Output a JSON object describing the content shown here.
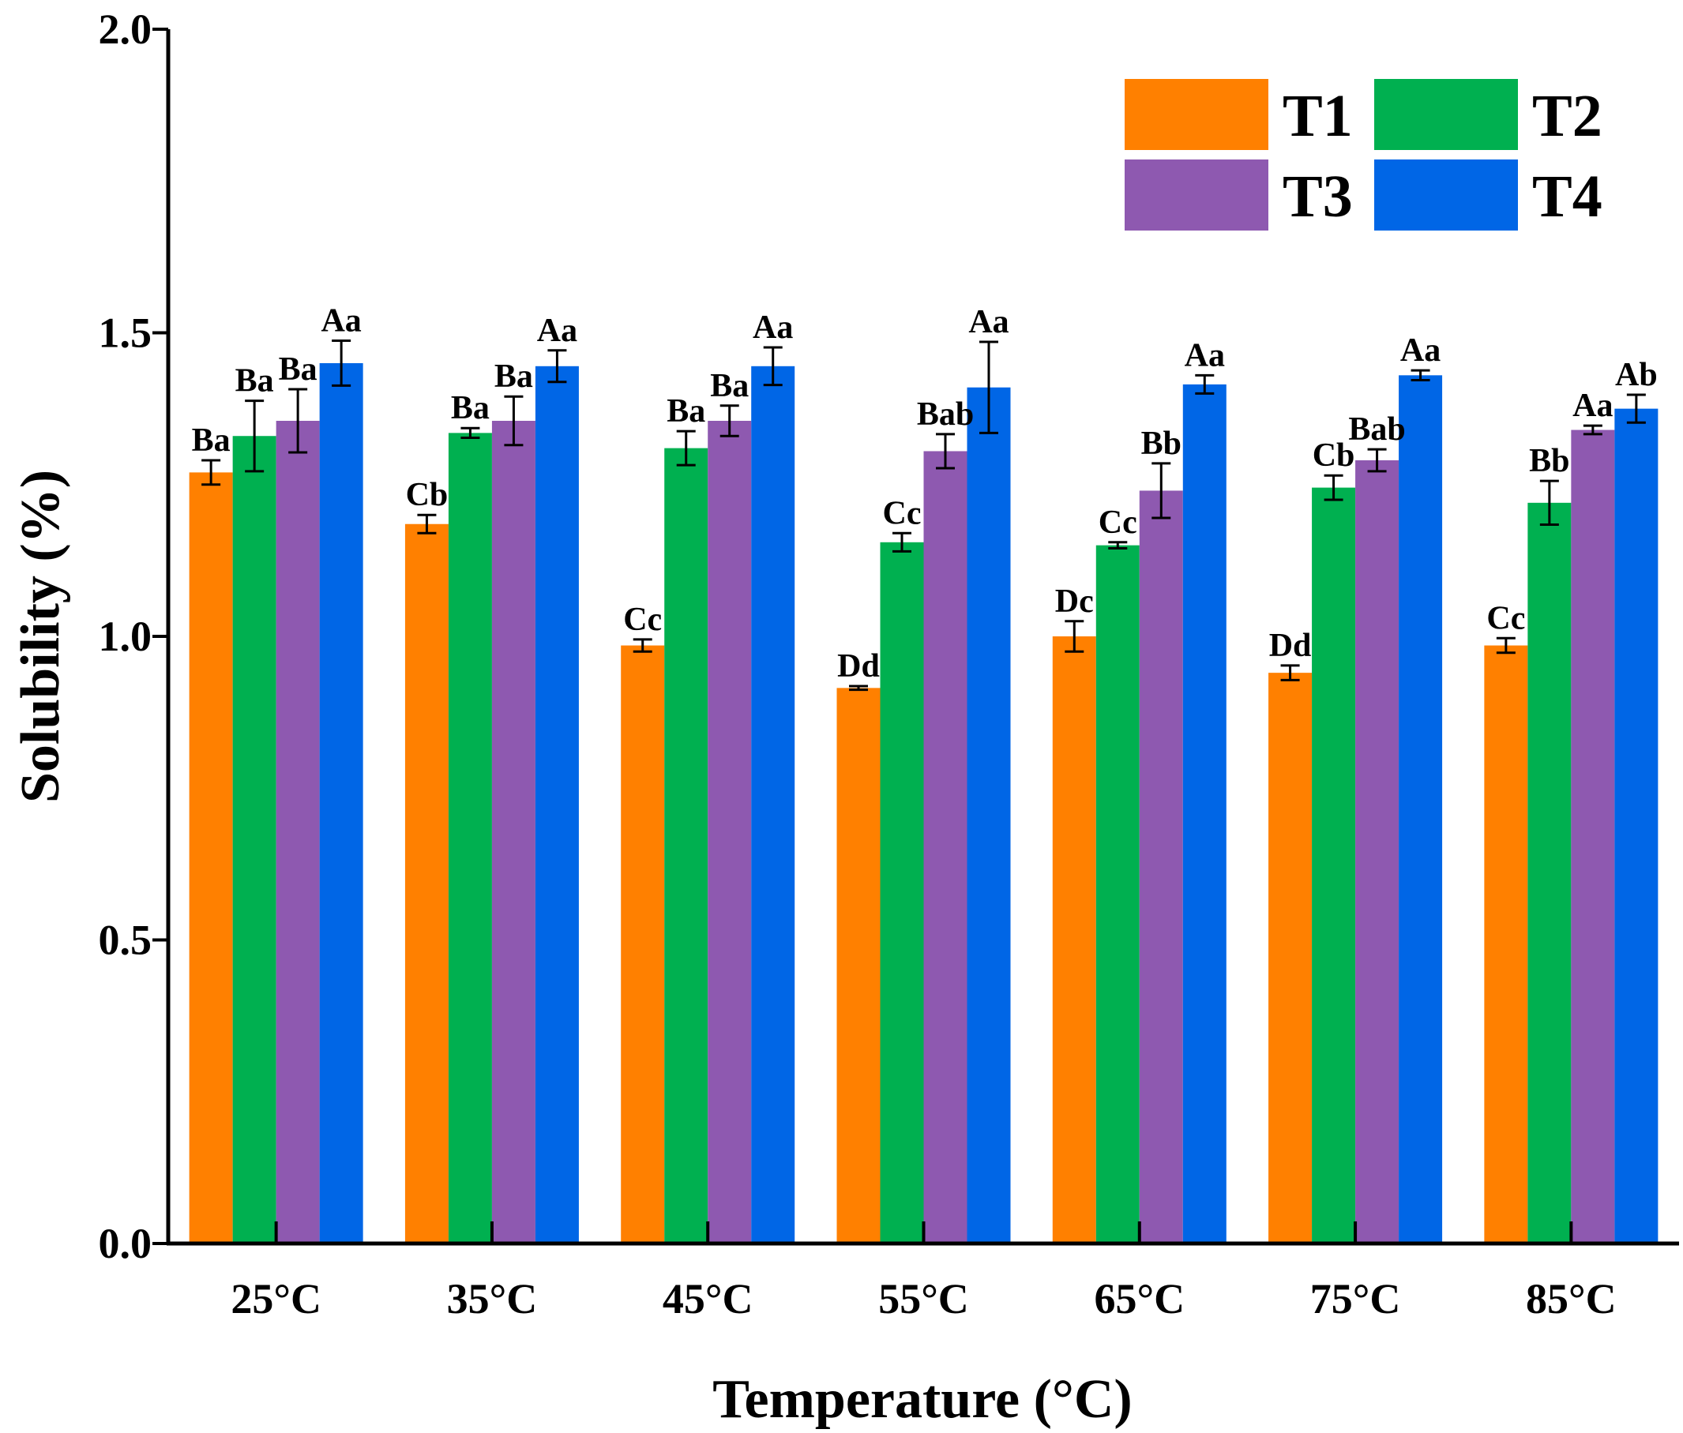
{
  "chart_data": {
    "type": "bar",
    "title": "",
    "xlabel": "Temperature (°C)",
    "ylabel": "Solubility (%)",
    "ylim": [
      0,
      2.0
    ],
    "yticks": [
      "0.0",
      "0.5",
      "1.0",
      "1.5",
      "2.0"
    ],
    "ytick_values": [
      0,
      0.5,
      1.0,
      1.5,
      2.0
    ],
    "categories": [
      "25°C",
      "35°C",
      "45°C",
      "55°C",
      "65°C",
      "75°C",
      "85°C"
    ],
    "legend_position": "top-right",
    "series": [
      {
        "name": "T1",
        "color": "#FF8000",
        "values": [
          1.27,
          1.185,
          0.985,
          0.915,
          1.0,
          0.94,
          0.985
        ],
        "errors": [
          0.02,
          0.015,
          0.01,
          0.003,
          0.025,
          0.012,
          0.012
        ],
        "labels": [
          "Ba",
          "Cb",
          "Cc",
          "Dd",
          "Dc",
          "Dd",
          "Cc"
        ]
      },
      {
        "name": "T2",
        "color": "#00B050",
        "values": [
          1.33,
          1.335,
          1.31,
          1.155,
          1.15,
          1.245,
          1.22
        ],
        "errors": [
          0.058,
          0.008,
          0.028,
          0.015,
          0.005,
          0.02,
          0.036
        ],
        "labels": [
          "Ba",
          "Ba",
          "Ba",
          "Cc",
          "Cc",
          "Cb",
          "Bb"
        ]
      },
      {
        "name": "T3",
        "color": "#8E59B0",
        "values": [
          1.355,
          1.355,
          1.355,
          1.305,
          1.24,
          1.29,
          1.34
        ],
        "errors": [
          0.052,
          0.04,
          0.025,
          0.028,
          0.045,
          0.018,
          0.007
        ],
        "labels": [
          "Ba",
          "Ba",
          "Ba",
          "Bab",
          "Bb",
          "Bab",
          "Aa"
        ]
      },
      {
        "name": "T4",
        "color": "#0066E6",
        "values": [
          1.45,
          1.445,
          1.445,
          1.41,
          1.415,
          1.43,
          1.375
        ],
        "errors": [
          0.037,
          0.026,
          0.031,
          0.075,
          0.015,
          0.008,
          0.023
        ],
        "labels": [
          "Aa",
          "Aa",
          "Aa",
          "Aa",
          "Aa",
          "Aa",
          "Ab"
        ]
      }
    ]
  }
}
